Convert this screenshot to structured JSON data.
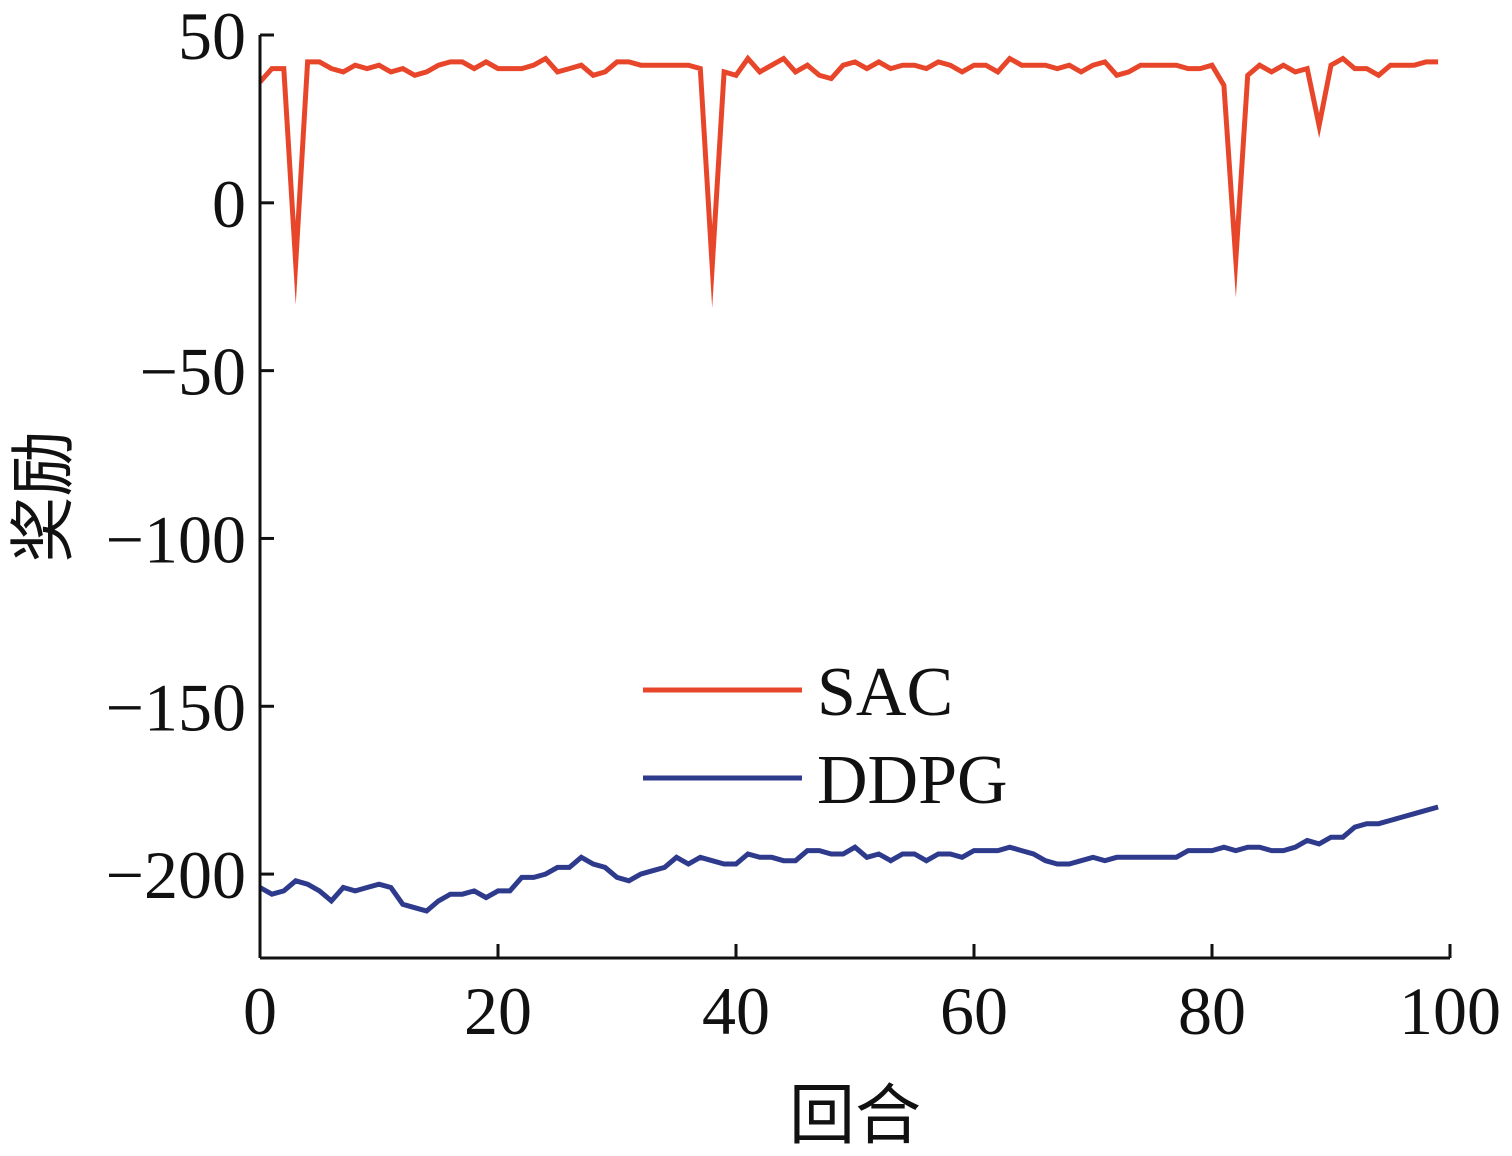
{
  "chart_data": {
    "type": "line",
    "title": "",
    "xlabel": "回合",
    "ylabel": "奖励",
    "xlim": [
      0,
      100
    ],
    "ylim": [
      -225,
      50
    ],
    "xticks": [
      0,
      20,
      40,
      60,
      80,
      100
    ],
    "xtick_labels": [
      "0",
      "20",
      "40",
      "60",
      "80",
      "100"
    ],
    "yticks": [
      50,
      0,
      -50,
      -100,
      -150,
      -200
    ],
    "ytick_labels": [
      "50",
      "0",
      "−50",
      "−100",
      "−150",
      "−200"
    ],
    "grid": false,
    "legend_position": "center",
    "x": [
      0,
      1,
      2,
      3,
      4,
      5,
      6,
      7,
      8,
      9,
      10,
      11,
      12,
      13,
      14,
      15,
      16,
      17,
      18,
      19,
      20,
      21,
      22,
      23,
      24,
      25,
      26,
      27,
      28,
      29,
      30,
      31,
      32,
      33,
      34,
      35,
      36,
      37,
      38,
      39,
      40,
      41,
      42,
      43,
      44,
      45,
      46,
      47,
      48,
      49,
      50,
      51,
      52,
      53,
      54,
      55,
      56,
      57,
      58,
      59,
      60,
      61,
      62,
      63,
      64,
      65,
      66,
      67,
      68,
      69,
      70,
      71,
      72,
      73,
      74,
      75,
      76,
      77,
      78,
      79,
      80,
      81,
      82,
      83,
      84,
      85,
      86,
      87,
      88,
      89,
      90,
      91,
      92,
      93,
      94,
      95,
      96,
      97,
      98,
      99
    ],
    "series": [
      {
        "name": "SAC",
        "color": "#e8462a",
        "values": [
          36,
          40,
          40,
          -18,
          42,
          42,
          40,
          39,
          41,
          40,
          41,
          39,
          40,
          38,
          39,
          41,
          42,
          42,
          40,
          42,
          40,
          40,
          40,
          41,
          43,
          39,
          40,
          41,
          38,
          39,
          42,
          42,
          41,
          41,
          41,
          41,
          41,
          40,
          -19,
          39,
          38,
          43,
          39,
          41,
          43,
          39,
          41,
          38,
          37,
          41,
          42,
          40,
          42,
          40,
          41,
          41,
          40,
          42,
          41,
          39,
          41,
          41,
          39,
          43,
          41,
          41,
          41,
          40,
          41,
          39,
          41,
          42,
          38,
          39,
          41,
          41,
          41,
          41,
          40,
          40,
          41,
          35,
          -17,
          38,
          41,
          39,
          41,
          39,
          40,
          23,
          41,
          43,
          40,
          40,
          38,
          41,
          41,
          41,
          42,
          42
        ],
        "line_width": 5
      },
      {
        "name": "DDPG",
        "color": "#2e3a8c",
        "values": [
          -204,
          -206,
          -205,
          -202,
          -203,
          -205,
          -208,
          -204,
          -205,
          -204,
          -203,
          -204,
          -209,
          -210,
          -211,
          -208,
          -206,
          -206,
          -205,
          -207,
          -205,
          -205,
          -201,
          -201,
          -200,
          -198,
          -198,
          -195,
          -197,
          -198,
          -201,
          -202,
          -200,
          -199,
          -198,
          -195,
          -197,
          -195,
          -196,
          -197,
          -197,
          -194,
          -195,
          -195,
          -196,
          -196,
          -193,
          -193,
          -194,
          -194,
          -192,
          -195,
          -194,
          -196,
          -194,
          -194,
          -196,
          -194,
          -194,
          -195,
          -193,
          -193,
          -193,
          -192,
          -193,
          -194,
          -196,
          -197,
          -197,
          -196,
          -195,
          -196,
          -195,
          -195,
          -195,
          -195,
          -195,
          -195,
          -193,
          -193,
          -193,
          -192,
          -193,
          -192,
          -192,
          -193,
          -193,
          -192,
          -190,
          -191,
          -189,
          -189,
          -186,
          -185,
          -185,
          -184,
          -183,
          -182,
          -181,
          -180
        ],
        "line_width": 5
      }
    ]
  }
}
